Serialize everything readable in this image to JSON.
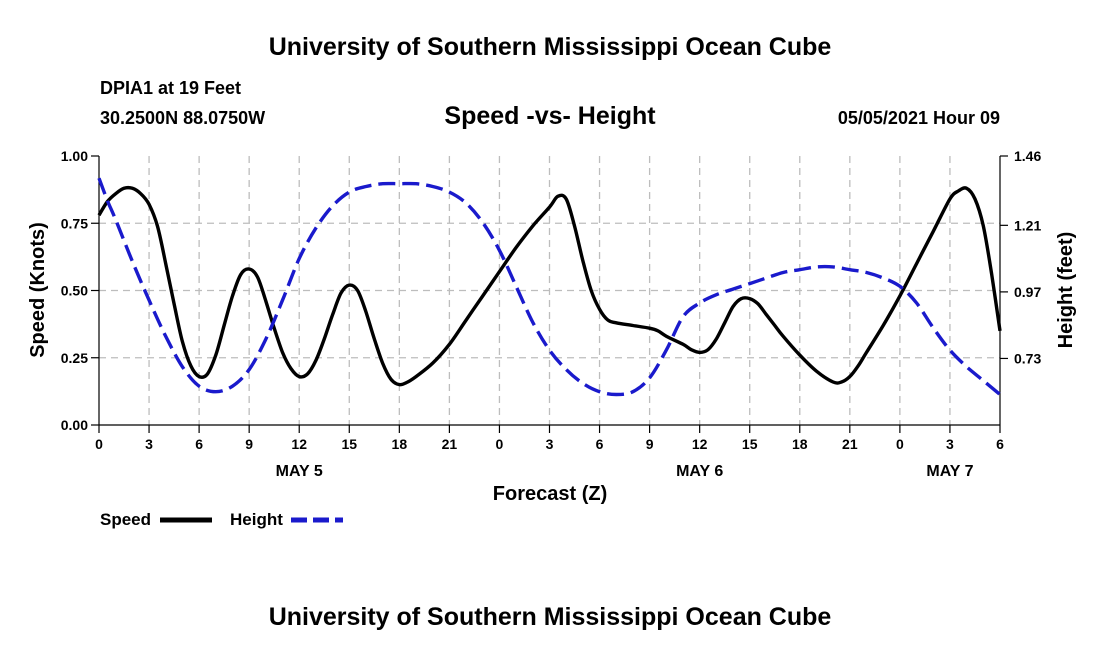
{
  "page": {
    "top_title": "University of Southern Mississippi Ocean Cube",
    "bottom_title": "University of Southern Mississippi Ocean Cube",
    "station": "DPIA1 at 19 Feet",
    "coords": "30.2500N  88.0750W",
    "datetime": "05/05/2021 Hour 09"
  },
  "chart_data": {
    "type": "line",
    "title": "Speed -vs- Height",
    "xlabel": "Forecast (Z)",
    "ylabel": "Speed (Knots)",
    "y2label": "Height (feet)",
    "xlim": [
      0,
      54
    ],
    "ylim": [
      0,
      1
    ],
    "y2lim": [
      0.49,
      1.46
    ],
    "x_ticks": [
      0,
      3,
      6,
      9,
      12,
      15,
      18,
      21,
      24,
      27,
      30,
      33,
      36,
      39,
      42,
      45,
      48,
      51,
      54
    ],
    "x_tick_labels": [
      "0",
      "3",
      "6",
      "9",
      "12",
      "15",
      "18",
      "21",
      "0",
      "3",
      "6",
      "9",
      "12",
      "15",
      "18",
      "21",
      "0",
      "3",
      "6"
    ],
    "y_ticks": [
      0,
      0.25,
      0.5,
      0.75,
      1.0
    ],
    "y_tick_labels": [
      "0.00",
      "0.25",
      "0.50",
      "0.75",
      "1.00"
    ],
    "y2_ticks": [
      0.73,
      0.97,
      1.21,
      1.46
    ],
    "y2_tick_labels": [
      "0.73",
      "0.97",
      "1.21",
      "1.46"
    ],
    "date_labels": [
      {
        "label": "MAY 5",
        "x": 12
      },
      {
        "label": "MAY 6",
        "x": 36
      },
      {
        "label": "MAY 7",
        "x": 51
      }
    ],
    "grid": true,
    "legend": [
      {
        "name": "Speed",
        "color": "#000000",
        "style": "solid"
      },
      {
        "name": "Height",
        "color": "#1a1acc",
        "style": "dashed"
      }
    ],
    "series": [
      {
        "name": "Speed",
        "axis": "left",
        "color": "#000000",
        "x": [
          0,
          0.5,
          1,
          1.5,
          2,
          2.5,
          3,
          3.5,
          4,
          4.5,
          5,
          5.5,
          6,
          6.5,
          7,
          7.5,
          8,
          8.5,
          9,
          9.5,
          10,
          10.5,
          11,
          11.5,
          12,
          12.5,
          13,
          13.5,
          14,
          14.5,
          15,
          15.5,
          16,
          16.5,
          17,
          17.5,
          18,
          18.5,
          19,
          20,
          21,
          22,
          23,
          24,
          25,
          26,
          27,
          27.5,
          28,
          28.5,
          29,
          29.5,
          30,
          30.5,
          31,
          32,
          33,
          33.5,
          34,
          35,
          35.5,
          36,
          36.5,
          37,
          37.5,
          38,
          38.5,
          39,
          39.5,
          40,
          40.5,
          41,
          42,
          43,
          44,
          44.5,
          45,
          45.5,
          46,
          47,
          48,
          49,
          50,
          51,
          51.5,
          52,
          52.5,
          53,
          53.5,
          54
        ],
        "values": [
          0.78,
          0.83,
          0.86,
          0.88,
          0.88,
          0.86,
          0.82,
          0.74,
          0.6,
          0.45,
          0.31,
          0.22,
          0.18,
          0.19,
          0.26,
          0.37,
          0.48,
          0.56,
          0.58,
          0.55,
          0.46,
          0.36,
          0.27,
          0.21,
          0.18,
          0.19,
          0.24,
          0.32,
          0.41,
          0.49,
          0.52,
          0.5,
          0.42,
          0.32,
          0.23,
          0.17,
          0.15,
          0.16,
          0.18,
          0.23,
          0.3,
          0.39,
          0.48,
          0.57,
          0.66,
          0.74,
          0.81,
          0.85,
          0.84,
          0.74,
          0.61,
          0.5,
          0.43,
          0.39,
          0.38,
          0.37,
          0.36,
          0.35,
          0.33,
          0.3,
          0.28,
          0.27,
          0.28,
          0.32,
          0.38,
          0.44,
          0.47,
          0.47,
          0.45,
          0.41,
          0.37,
          0.33,
          0.26,
          0.2,
          0.16,
          0.16,
          0.18,
          0.22,
          0.27,
          0.37,
          0.48,
          0.6,
          0.72,
          0.84,
          0.87,
          0.88,
          0.84,
          0.74,
          0.56,
          0.35
        ]
      },
      {
        "name": "Height",
        "axis": "right",
        "color": "#1a1acc",
        "x": [
          0,
          0.5,
          1,
          2,
          3,
          4,
          5,
          6,
          7,
          8,
          9,
          10,
          11,
          12,
          13,
          14,
          15,
          16,
          17,
          18,
          19,
          20,
          21,
          22,
          23,
          24,
          25,
          26,
          27,
          28,
          29,
          30,
          31,
          32,
          33,
          34,
          35,
          36,
          37,
          38,
          39,
          40,
          41,
          42,
          43,
          44,
          45,
          46,
          47,
          48,
          49,
          50,
          51,
          52,
          53,
          54
        ],
        "values": [
          1.38,
          1.3,
          1.23,
          1.08,
          0.94,
          0.81,
          0.7,
          0.63,
          0.61,
          0.63,
          0.69,
          0.8,
          0.94,
          1.09,
          1.2,
          1.28,
          1.33,
          1.35,
          1.36,
          1.36,
          1.36,
          1.35,
          1.33,
          1.29,
          1.22,
          1.12,
          0.99,
          0.86,
          0.76,
          0.69,
          0.64,
          0.61,
          0.6,
          0.61,
          0.66,
          0.76,
          0.88,
          0.93,
          0.96,
          0.98,
          1.0,
          1.02,
          1.04,
          1.05,
          1.06,
          1.06,
          1.05,
          1.04,
          1.02,
          0.99,
          0.93,
          0.84,
          0.76,
          0.7,
          0.65,
          0.6
        ]
      }
    ]
  }
}
